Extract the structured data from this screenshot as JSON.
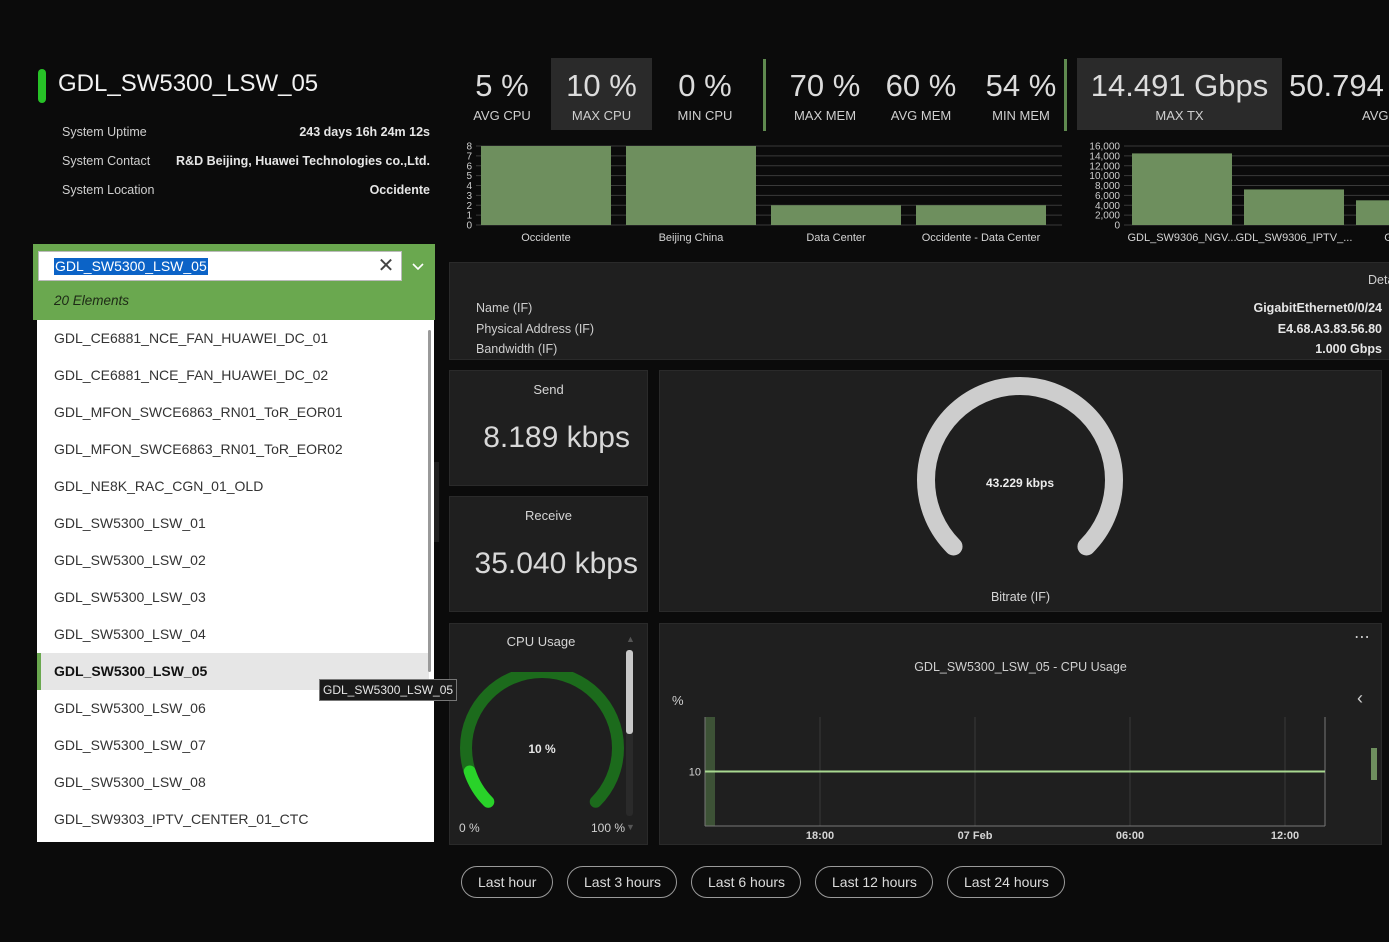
{
  "device": {
    "title": "GDL_SW5300_LSW_05",
    "status_color": "#27c227",
    "info": [
      {
        "label": "System Uptime",
        "value": "243 days 16h 24m 12s"
      },
      {
        "label": "System Contact",
        "value": "R&D Beijing, Huawei Technologies co.,Ltd."
      },
      {
        "label": "System Location",
        "value": "Occidente"
      }
    ]
  },
  "kpis": [
    {
      "value": "5 %",
      "label": "AVG CPU"
    },
    {
      "value": "10 %",
      "label": "MAX CPU",
      "highlighted": true
    },
    {
      "value": "0 %",
      "label": "MIN CPU"
    },
    {
      "value": "70 %",
      "label": "MAX MEM"
    },
    {
      "value": "60 %",
      "label": "AVG MEM"
    },
    {
      "value": "54 %",
      "label": "MIN MEM"
    },
    {
      "value": "14.491 Gbps",
      "label": "MAX TX",
      "highlighted": true
    },
    {
      "value": "50.794",
      "label": "AVG"
    }
  ],
  "chart_data": [
    {
      "type": "bar",
      "categories": [
        "Occidente",
        "Beijing China",
        "Data Center",
        "Occidente - Data Center"
      ],
      "values": [
        8,
        8,
        2,
        2
      ],
      "ylim": [
        0,
        8
      ],
      "yticks": [
        "0",
        "1",
        "2",
        "3",
        "4",
        "5",
        "6",
        "7",
        "8"
      ],
      "bar_color": "#6e8f5e",
      "grid": true
    },
    {
      "type": "bar",
      "categories": [
        "GDL_SW9306_NGV...",
        "GDL_SW9306_IPTV_...",
        "GDL_SV"
      ],
      "values": [
        14500,
        7200,
        5000
      ],
      "ylim": [
        0,
        16000
      ],
      "yticks": [
        "0",
        "2,000",
        "4,000",
        "6,000",
        "8,000",
        "10,000",
        "12,000",
        "14,000",
        "16,000"
      ],
      "bar_color": "#6e8f5e",
      "grid": true
    },
    {
      "type": "line",
      "title": "GDL_SW5300_LSW_05 - CPU Usage",
      "ylabel": "%",
      "yticks": [
        "10"
      ],
      "x_ticks": [
        "18:00",
        "07 Feb",
        "06:00",
        "12:00"
      ],
      "series": [
        {
          "values": [
            10,
            10,
            10,
            10,
            10,
            10
          ]
        }
      ],
      "ylim": [
        0,
        20
      ],
      "line_color": "#a8d890"
    }
  ],
  "details": {
    "header": "Deta",
    "rows": [
      {
        "label": "Name (IF)",
        "value": "GigabitEthernet0/0/24"
      },
      {
        "label": "Physical Address (IF)",
        "value": "E4.68.A3.83.56.80"
      },
      {
        "label": "Bandwidth (IF)",
        "value": "1.000 Gbps"
      }
    ]
  },
  "send": {
    "title": "Send",
    "value": "8.189 kbps"
  },
  "receive": {
    "title": "Receive",
    "value": "35.040 kbps"
  },
  "bitrate_gauge": {
    "value_text": "43.229 kbps",
    "label": "Bitrate (IF)",
    "fraction": 1.0
  },
  "cpu_gauge": {
    "title": "CPU Usage",
    "value_text": "10 %",
    "fraction": 0.1,
    "min": "0 %",
    "max": "100 %"
  },
  "time_buttons": [
    "Last hour",
    "Last 3 hours",
    "Last 6 hours",
    "Last 12 hours",
    "Last 24 hours"
  ],
  "dropdown": {
    "value": "GDL_SW5300_LSW_05",
    "count_text": "20 Elements",
    "items": [
      "GDL_CE6881_NCE_FAN_HUAWEI_DC_01",
      "GDL_CE6881_NCE_FAN_HUAWEI_DC_02",
      "GDL_MFON_SWCE6863_RN01_ToR_EOR01",
      "GDL_MFON_SWCE6863_RN01_ToR_EOR02",
      "GDL_NE8K_RAC_CGN_01_OLD",
      "GDL_SW5300_LSW_01",
      "GDL_SW5300_LSW_02",
      "GDL_SW5300_LSW_03",
      "GDL_SW5300_LSW_04",
      "GDL_SW5300_LSW_05",
      "GDL_SW5300_LSW_06",
      "GDL_SW5300_LSW_07",
      "GDL_SW5300_LSW_08",
      "GDL_SW9303_IPTV_CENTER_01_CTC"
    ],
    "selected_index": 9,
    "tooltip": "GDL_SW5300_LSW_05"
  },
  "icons": {
    "clear": "close-icon",
    "expand": "chevron-down-icon",
    "more": "more-icon",
    "collapse": "chevron-left-icon"
  }
}
